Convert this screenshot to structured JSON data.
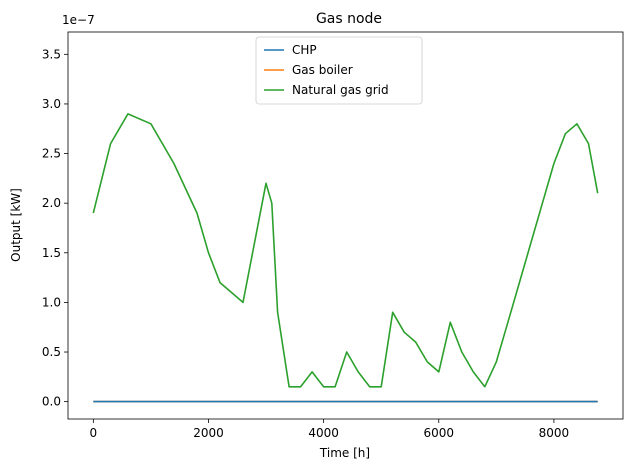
{
  "chart_data": {
    "type": "line",
    "title": "Gas node",
    "xlabel": "Time [h]",
    "ylabel": "Output [kW]",
    "y_offset_text": "1e−7",
    "y_scale": 1e-07,
    "xlim": [
      -440,
      9200
    ],
    "ylim": [
      -0.175,
      3.725
    ],
    "xticks": [
      0,
      2000,
      4000,
      6000,
      8000
    ],
    "xtick_labels": [
      "0",
      "2000",
      "4000",
      "6000",
      "8000"
    ],
    "yticks": [
      0.0,
      0.5,
      1.0,
      1.5,
      2.0,
      2.5,
      3.0,
      3.5
    ],
    "ytick_labels": [
      "0.0",
      "0.5",
      "1.0",
      "1.5",
      "2.0",
      "2.5",
      "3.0",
      "3.5"
    ],
    "grid": false,
    "legend": {
      "position": "top-center"
    },
    "series": [
      {
        "name": "CHP",
        "color": "#1f77b4",
        "x": [
          0,
          8760
        ],
        "values": [
          0.0,
          0.0
        ]
      },
      {
        "name": "Gas boiler",
        "color": "#ff7f0e",
        "x": [
          0,
          8760
        ],
        "values": [
          0.0,
          0.0
        ]
      },
      {
        "name": "Natural gas grid",
        "color": "#2ca02c",
        "x": [
          0,
          300,
          600,
          1000,
          1400,
          1800,
          2000,
          2200,
          2600,
          2800,
          3000,
          3100,
          3200,
          3400,
          3600,
          3800,
          4000,
          4200,
          4400,
          4600,
          4800,
          5000,
          5200,
          5400,
          5600,
          5800,
          6000,
          6200,
          6400,
          6600,
          6800,
          7000,
          7200,
          7400,
          7600,
          7800,
          8000,
          8200,
          8400,
          8600,
          8760
        ],
        "values": [
          1.9,
          2.6,
          2.9,
          2.8,
          2.4,
          1.9,
          1.5,
          1.2,
          1.0,
          1.6,
          2.2,
          2.0,
          0.9,
          0.15,
          0.15,
          0.3,
          0.15,
          0.15,
          0.5,
          0.3,
          0.15,
          0.15,
          0.9,
          0.7,
          0.6,
          0.4,
          0.3,
          0.8,
          0.5,
          0.3,
          0.15,
          0.4,
          0.8,
          1.2,
          1.6,
          2.0,
          2.4,
          2.7,
          2.8,
          2.6,
          2.1
        ]
      }
    ]
  }
}
